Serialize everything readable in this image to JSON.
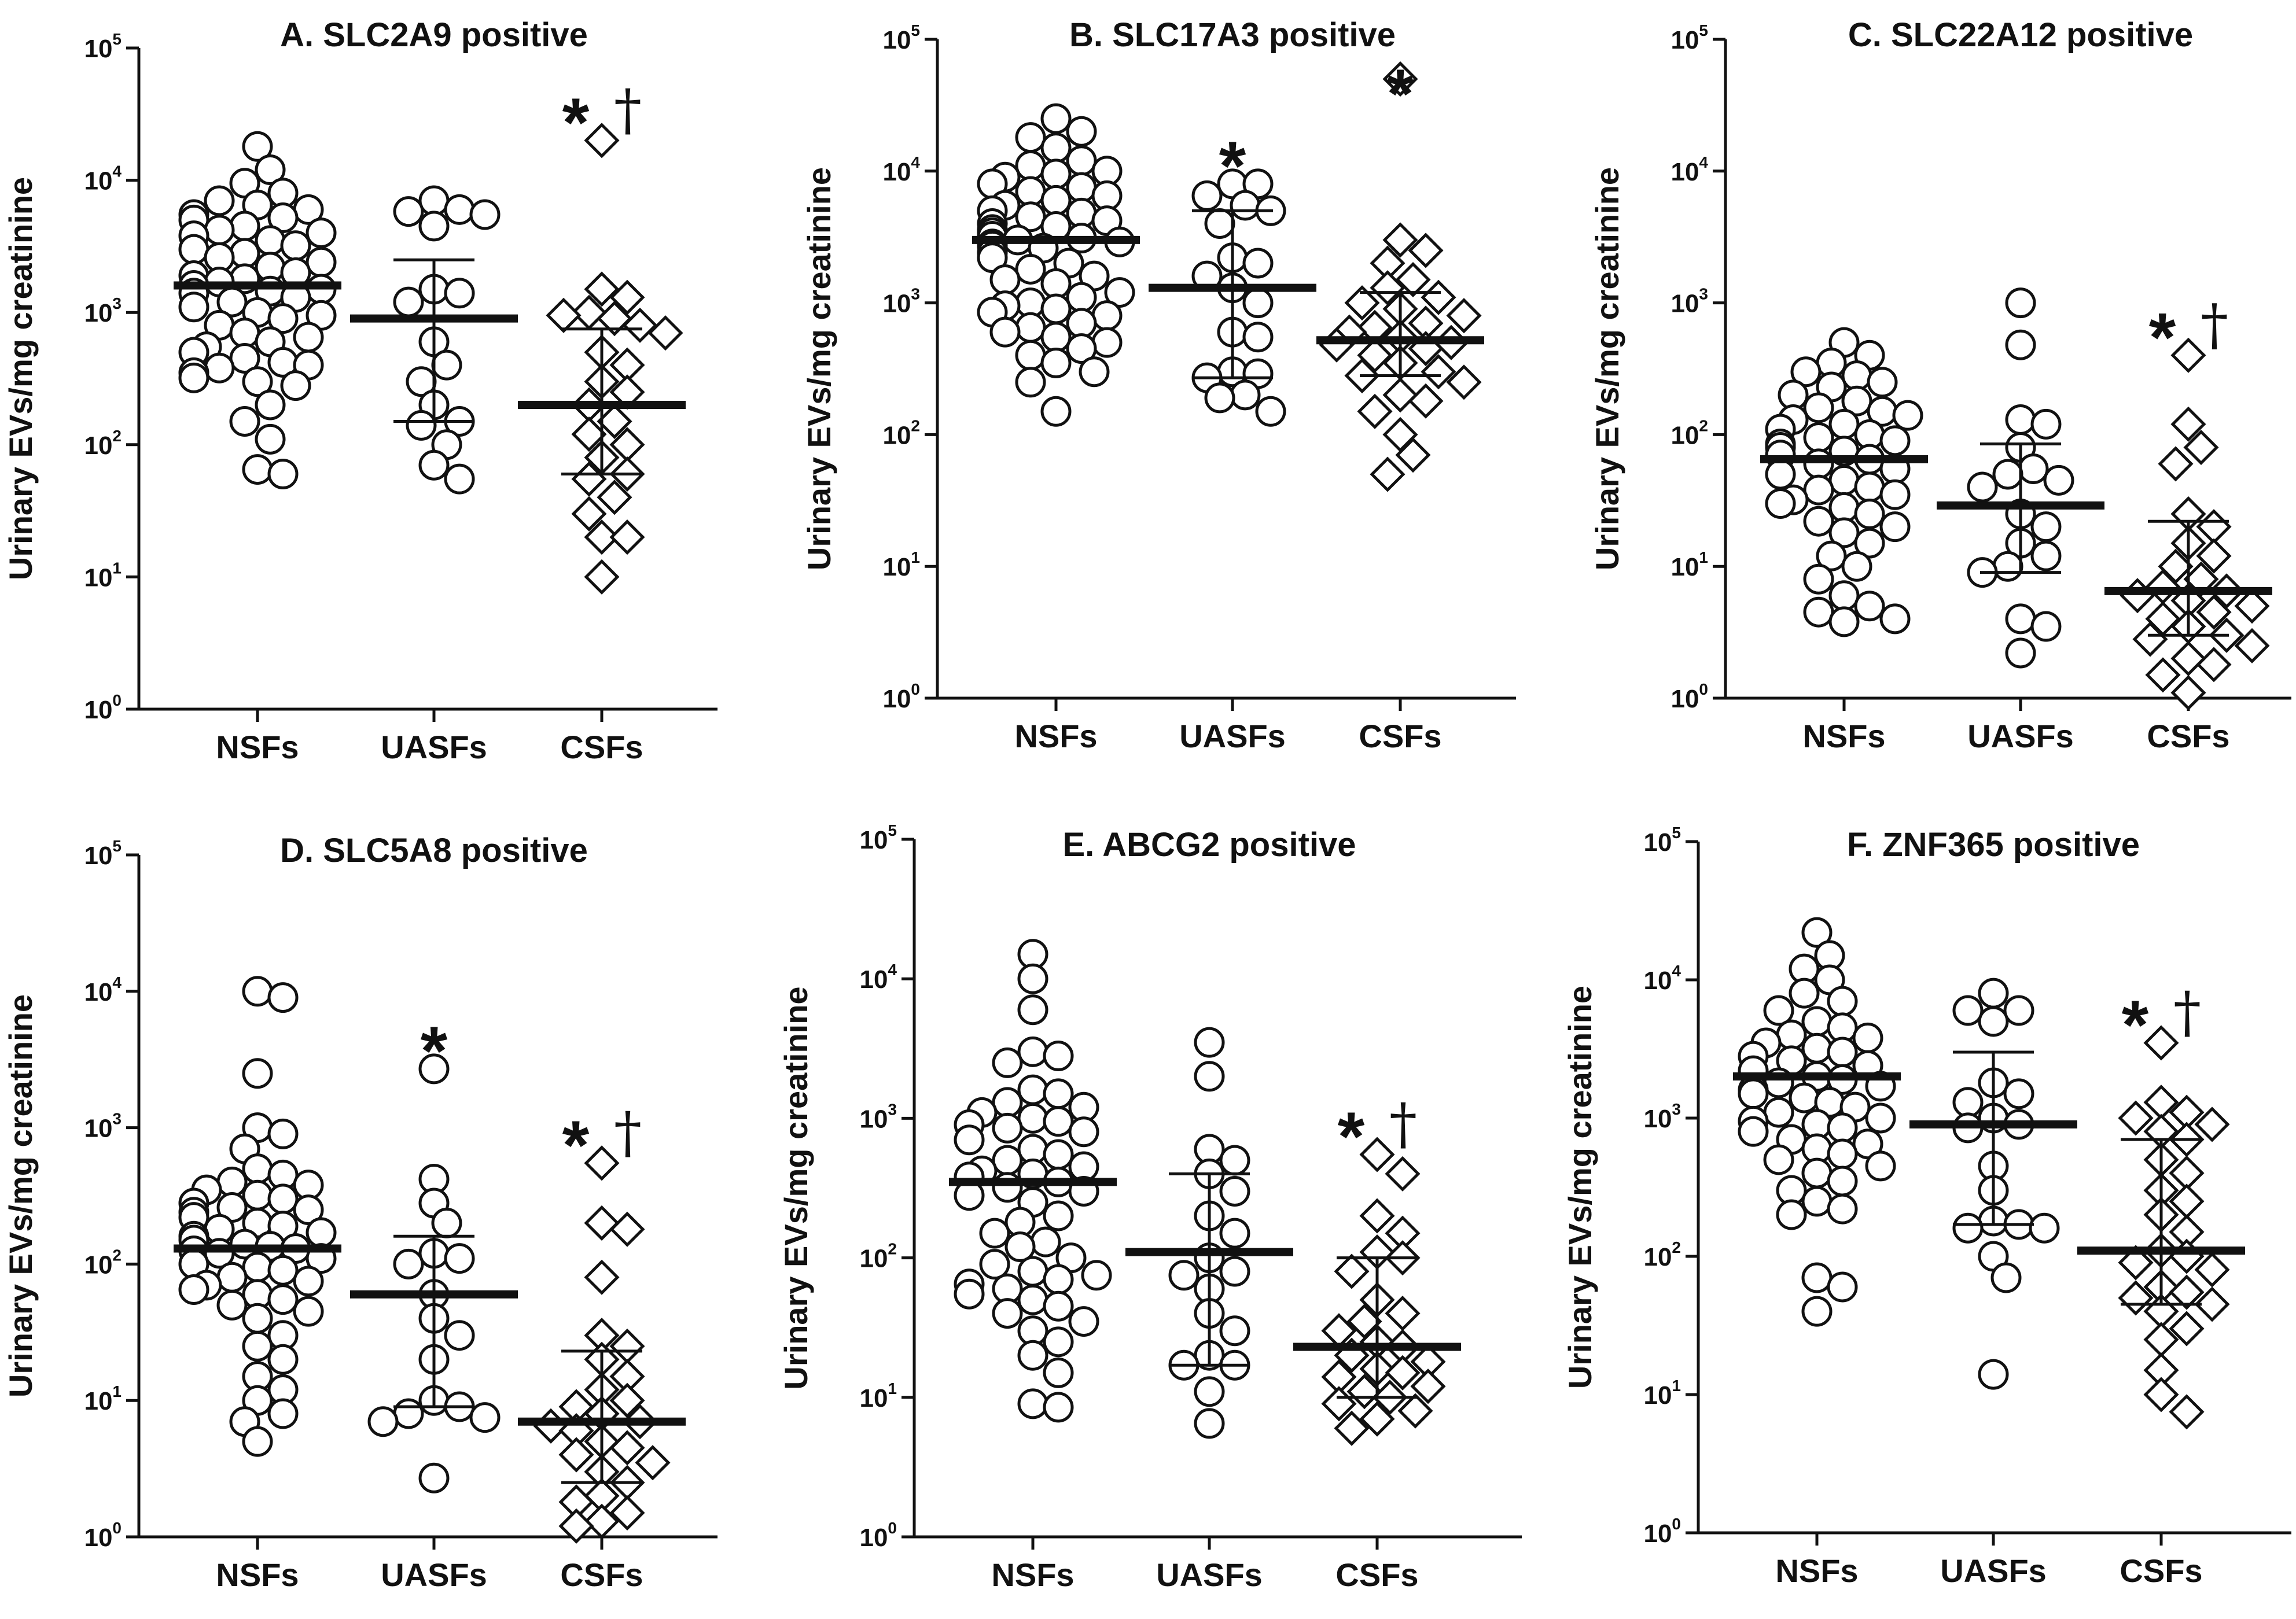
{
  "chart_data": [
    {
      "type": "scatter",
      "title": "A. SLC2A9 positive",
      "ylabel": "Urinary EVs/mg creatinine",
      "yscale": "log10",
      "ylim": [
        1,
        100000
      ],
      "yticks": [
        {
          "base": "10",
          "exp": "0"
        },
        {
          "base": "10",
          "exp": "1"
        },
        {
          "base": "10",
          "exp": "2"
        },
        {
          "base": "10",
          "exp": "3"
        },
        {
          "base": "10",
          "exp": "4"
        },
        {
          "base": "10",
          "exp": "5"
        }
      ],
      "categories": [
        "NSFs",
        "UASFs",
        "CSFs"
      ],
      "groups": [
        {
          "name": "NSFs",
          "marker": "circle",
          "median": 1600,
          "iqr": null,
          "annotation": "",
          "annotation_dagger": "",
          "values": [
            18000,
            12000,
            9500,
            8000,
            7000,
            6500,
            6000,
            5500,
            5200,
            5000,
            4500,
            4200,
            4000,
            3800,
            3500,
            3200,
            3000,
            2800,
            2600,
            2400,
            2200,
            2000,
            1900,
            1800,
            1700,
            1600,
            1500,
            1450,
            1400,
            1300,
            1200,
            1100,
            1000,
            950,
            900,
            800,
            700,
            650,
            600,
            550,
            500,
            450,
            420,
            400,
            380,
            350,
            320,
            300,
            280,
            200,
            150,
            110,
            65,
            60
          ]
        },
        {
          "name": "UASFs",
          "marker": "circle",
          "median": 900,
          "iqr": [
            150,
            2500
          ],
          "annotation": "",
          "annotation_dagger": "",
          "values": [
            7000,
            6000,
            5800,
            5500,
            4500,
            1500,
            1400,
            1200,
            600,
            400,
            300,
            200,
            150,
            140,
            100,
            70,
            55
          ]
        },
        {
          "name": "CSFs",
          "marker": "diamond",
          "median": 200,
          "iqr": [
            60,
            750
          ],
          "annotation": "*",
          "annotation_dagger": "†",
          "values": [
            20000,
            1500,
            1300,
            1000,
            950,
            900,
            800,
            700,
            500,
            400,
            300,
            250,
            200,
            150,
            120,
            100,
            80,
            60,
            55,
            40,
            30,
            20,
            20,
            10
          ]
        }
      ]
    },
    {
      "type": "scatter",
      "title": "B. SLC17A3 positive",
      "ylabel": "Urinary EVs/mg creatinine",
      "yscale": "log10",
      "ylim": [
        1,
        100000
      ],
      "yticks": [
        {
          "base": "10",
          "exp": "0"
        },
        {
          "base": "10",
          "exp": "1"
        },
        {
          "base": "10",
          "exp": "2"
        },
        {
          "base": "10",
          "exp": "3"
        },
        {
          "base": "10",
          "exp": "4"
        },
        {
          "base": "10",
          "exp": "5"
        }
      ],
      "categories": [
        "NSFs",
        "UASFs",
        "CSFs"
      ],
      "groups": [
        {
          "name": "NSFs",
          "marker": "circle",
          "median": 3000,
          "iqr": null,
          "annotation": "",
          "annotation_dagger": "",
          "values": [
            25000,
            20000,
            18000,
            15000,
            12000,
            11000,
            10000,
            9500,
            9000,
            8000,
            7500,
            7000,
            6500,
            6000,
            5500,
            5000,
            4800,
            4500,
            4200,
            4000,
            3800,
            3600,
            3400,
            3200,
            3100,
            3000,
            2900,
            2800,
            2700,
            2600,
            2400,
            2200,
            2000,
            1800,
            1600,
            1500,
            1400,
            1200,
            1100,
            1000,
            950,
            900,
            850,
            800,
            700,
            650,
            600,
            550,
            500,
            450,
            400,
            350,
            300,
            250,
            150
          ]
        },
        {
          "name": "UASFs",
          "marker": "circle",
          "median": 1300,
          "iqr": [
            270,
            5000
          ],
          "annotation": "*",
          "annotation_dagger": "",
          "values": [
            8000,
            8000,
            6500,
            5500,
            5000,
            4000,
            2200,
            2000,
            1600,
            1300,
            1000,
            600,
            550,
            300,
            290,
            270,
            200,
            190,
            150
          ]
        },
        {
          "name": "CSFs",
          "marker": "diamond",
          "median": 520,
          "iqr": [
            280,
            1200
          ],
          "annotation": "*",
          "annotation_dagger": "",
          "values": [
            50000,
            3000,
            2500,
            2000,
            1500,
            1300,
            1100,
            1000,
            900,
            800,
            700,
            650,
            600,
            550,
            500,
            480,
            450,
            400,
            350,
            300,
            280,
            250,
            200,
            180,
            150,
            100,
            70,
            50
          ]
        }
      ]
    },
    {
      "type": "scatter",
      "title": "C. SLC22A12 positive",
      "ylabel": "Urinary EVs/mg creatinine",
      "yscale": "log10",
      "ylim": [
        1,
        100000
      ],
      "yticks": [
        {
          "base": "10",
          "exp": "0"
        },
        {
          "base": "10",
          "exp": "1"
        },
        {
          "base": "10",
          "exp": "2"
        },
        {
          "base": "10",
          "exp": "3"
        },
        {
          "base": "10",
          "exp": "4"
        },
        {
          "base": "10",
          "exp": "5"
        }
      ],
      "categories": [
        "NSFs",
        "UASFs",
        "CSFs"
      ],
      "groups": [
        {
          "name": "NSFs",
          "marker": "circle",
          "median": 65,
          "iqr": null,
          "annotation": "",
          "annotation_dagger": "",
          "values": [
            500,
            400,
            350,
            300,
            280,
            250,
            230,
            200,
            180,
            160,
            150,
            140,
            130,
            120,
            110,
            100,
            95,
            90,
            85,
            80,
            75,
            70,
            65,
            60,
            55,
            50,
            45,
            40,
            38,
            35,
            32,
            30,
            28,
            25,
            22,
            20,
            18,
            15,
            12,
            10,
            8,
            6,
            5,
            4.5,
            4,
            3.8
          ]
        },
        {
          "name": "UASFs",
          "marker": "circle",
          "median": 29,
          "iqr": [
            9,
            85
          ],
          "annotation": "",
          "annotation_dagger": "",
          "values": [
            1000,
            480,
            130,
            120,
            80,
            55,
            50,
            45,
            40,
            25,
            20,
            15,
            12,
            10,
            9,
            4,
            3.5,
            2.2
          ]
        },
        {
          "name": "CSFs",
          "marker": "diamond",
          "median": 6.5,
          "iqr": [
            3,
            22
          ],
          "annotation": "*",
          "annotation_dagger": "†",
          "values": [
            400,
            120,
            80,
            60,
            25,
            20,
            15,
            12,
            10,
            8,
            7,
            6.5,
            6,
            5.5,
            5,
            4.5,
            4,
            3.5,
            3,
            2.8,
            2.5,
            2,
            1.8,
            1.5,
            1.1
          ]
        }
      ]
    },
    {
      "type": "scatter",
      "title": "D. SLC5A8 positive",
      "ylabel": "Urinary EVs/mg creatinine",
      "yscale": "log10",
      "ylim": [
        1,
        100000
      ],
      "yticks": [
        {
          "base": "10",
          "exp": "0"
        },
        {
          "base": "10",
          "exp": "1"
        },
        {
          "base": "10",
          "exp": "2"
        },
        {
          "base": "10",
          "exp": "3"
        },
        {
          "base": "10",
          "exp": "4"
        },
        {
          "base": "10",
          "exp": "5"
        }
      ],
      "categories": [
        "NSFs",
        "UASFs",
        "CSFs"
      ],
      "groups": [
        {
          "name": "NSFs",
          "marker": "circle",
          "median": 130,
          "iqr": null,
          "annotation": "",
          "annotation_dagger": "",
          "values": [
            10000,
            9000,
            2500,
            1000,
            900,
            700,
            500,
            450,
            400,
            380,
            350,
            320,
            300,
            280,
            260,
            250,
            240,
            220,
            200,
            190,
            180,
            170,
            160,
            150,
            140,
            135,
            130,
            125,
            120,
            110,
            100,
            95,
            90,
            80,
            75,
            70,
            65,
            60,
            55,
            50,
            45,
            40,
            30,
            25,
            20,
            15,
            12,
            10,
            8,
            7,
            5
          ]
        },
        {
          "name": "UASFs",
          "marker": "circle",
          "median": 60,
          "iqr": [
            9,
            160
          ],
          "annotation": "*",
          "annotation_dagger": "",
          "values": [
            2700,
            420,
            280,
            200,
            120,
            110,
            100,
            60,
            40,
            30,
            20,
            10,
            9,
            8,
            7.5,
            7,
            2.7
          ]
        },
        {
          "name": "CSFs",
          "marker": "diamond",
          "median": 7,
          "iqr": [
            2.5,
            23
          ],
          "annotation": "*",
          "annotation_dagger": "†",
          "values": [
            550,
            200,
            180,
            80,
            30,
            25,
            20,
            15,
            12,
            10,
            9,
            8,
            7,
            6.5,
            6,
            5,
            4.5,
            4,
            3.5,
            3,
            2.5,
            2,
            1.8,
            1.5,
            1.3,
            1.2
          ]
        }
      ]
    },
    {
      "type": "scatter",
      "title": "E. ABCG2 positive",
      "ylabel": "Urinary EVs/mg creatinine",
      "yscale": "log10",
      "ylim": [
        1,
        100000
      ],
      "yticks": [
        {
          "base": "10",
          "exp": "0"
        },
        {
          "base": "10",
          "exp": "1"
        },
        {
          "base": "10",
          "exp": "2"
        },
        {
          "base": "10",
          "exp": "3"
        },
        {
          "base": "10",
          "exp": "4"
        },
        {
          "base": "10",
          "exp": "5"
        }
      ],
      "categories": [
        "NSFs",
        "UASFs",
        "CSFs"
      ],
      "groups": [
        {
          "name": "NSFs",
          "marker": "circle",
          "median": 350,
          "iqr": null,
          "annotation": "",
          "annotation_dagger": "",
          "values": [
            15000,
            10000,
            6000,
            3000,
            2800,
            2500,
            1600,
            1500,
            1300,
            1200,
            1100,
            1000,
            950,
            900,
            850,
            800,
            700,
            600,
            550,
            500,
            450,
            420,
            400,
            380,
            350,
            320,
            300,
            280,
            250,
            200,
            180,
            150,
            130,
            120,
            100,
            90,
            80,
            75,
            70,
            65,
            60,
            55,
            50,
            45,
            40,
            35,
            30,
            25,
            20,
            15,
            9,
            8.5
          ]
        },
        {
          "name": "UASFs",
          "marker": "circle",
          "median": 110,
          "iqr": [
            17,
            400
          ],
          "annotation": "",
          "annotation_dagger": "",
          "values": [
            3500,
            2000,
            600,
            500,
            400,
            300,
            200,
            150,
            100,
            80,
            75,
            60,
            40,
            30,
            20,
            17,
            17,
            11,
            6.5
          ]
        },
        {
          "name": "CSFs",
          "marker": "diamond",
          "median": 23,
          "iqr": [
            10,
            100
          ],
          "annotation": "*",
          "annotation_dagger": "†",
          "values": [
            550,
            400,
            200,
            150,
            110,
            100,
            80,
            50,
            40,
            35,
            30,
            25,
            23,
            20,
            18,
            16,
            15,
            14,
            12,
            11,
            10,
            9,
            8,
            7,
            6
          ]
        }
      ]
    },
    {
      "type": "scatter",
      "title": "F. ZNF365 positive",
      "ylabel": "Urinary EVs/mg creatinine",
      "yscale": "log10",
      "ylim": [
        1,
        100000
      ],
      "yticks": [
        {
          "base": "10",
          "exp": "0"
        },
        {
          "base": "10",
          "exp": "1"
        },
        {
          "base": "10",
          "exp": "2"
        },
        {
          "base": "10",
          "exp": "3"
        },
        {
          "base": "10",
          "exp": "4"
        },
        {
          "base": "10",
          "exp": "5"
        }
      ],
      "categories": [
        "NSFs",
        "UASFs",
        "CSFs"
      ],
      "groups": [
        {
          "name": "NSFs",
          "marker": "circle",
          "median": 2000,
          "iqr": null,
          "annotation": "",
          "annotation_dagger": "",
          "values": [
            22000,
            15000,
            12000,
            10000,
            8000,
            7000,
            6000,
            5000,
            4500,
            4000,
            3800,
            3500,
            3200,
            3000,
            2800,
            2600,
            2400,
            2200,
            2000,
            1900,
            1800,
            1700,
            1600,
            1500,
            1400,
            1300,
            1200,
            1100,
            1000,
            950,
            900,
            850,
            800,
            700,
            650,
            600,
            550,
            500,
            450,
            400,
            350,
            300,
            250,
            220,
            200,
            70,
            60,
            40
          ]
        },
        {
          "name": "UASFs",
          "marker": "circle",
          "median": 900,
          "iqr": [
            170,
            3000
          ],
          "annotation": "",
          "annotation_dagger": "",
          "values": [
            8000,
            6000,
            6000,
            5000,
            1800,
            1500,
            1300,
            1000,
            900,
            850,
            450,
            300,
            180,
            170,
            160,
            160,
            100,
            70,
            14
          ]
        },
        {
          "name": "CSFs",
          "marker": "diamond",
          "median": 110,
          "iqr": [
            45,
            700
          ],
          "annotation": "*",
          "annotation_dagger": "†",
          "values": [
            3500,
            1300,
            1100,
            1000,
            900,
            800,
            700,
            500,
            400,
            300,
            250,
            200,
            150,
            110,
            100,
            90,
            80,
            60,
            55,
            50,
            45,
            40,
            30,
            25,
            15,
            10,
            7.5
          ]
        }
      ]
    }
  ]
}
